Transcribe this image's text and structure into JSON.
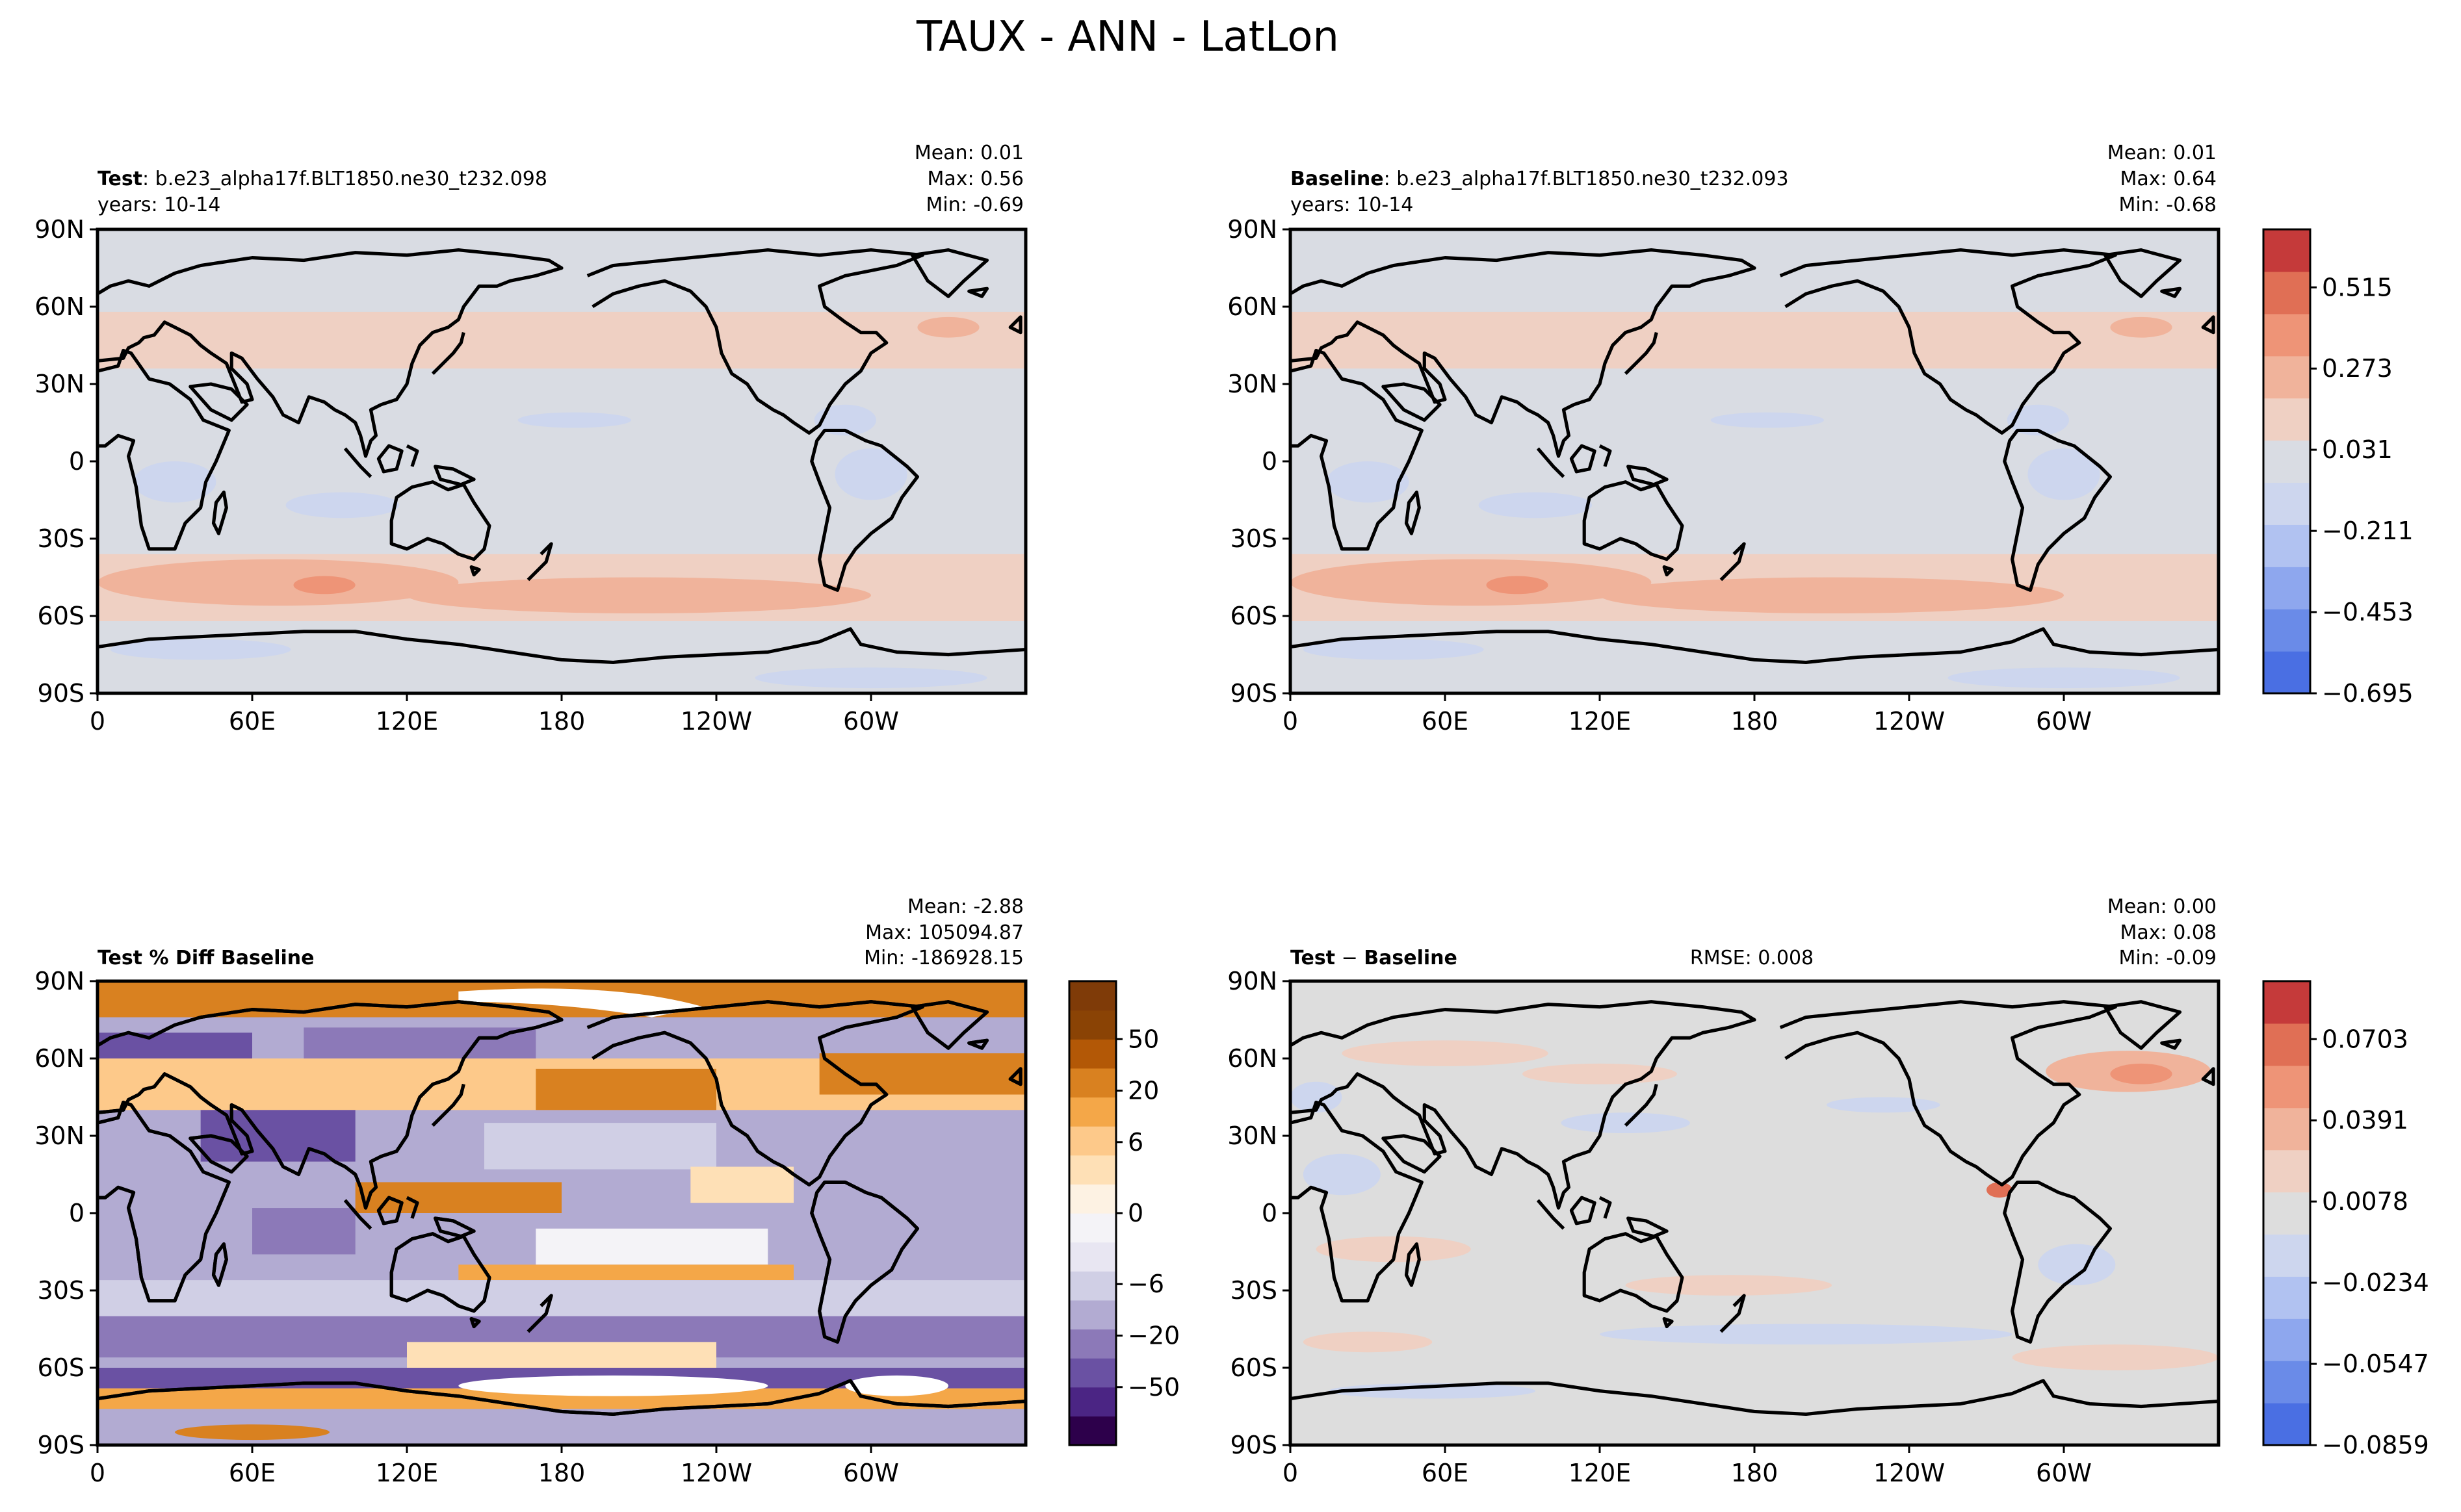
{
  "figure": {
    "title": "TAUX - ANN - LatLon"
  },
  "axes_ticks": {
    "lat": [
      "90N",
      "60N",
      "30N",
      "0",
      "30S",
      "60S",
      "90S"
    ],
    "lon": [
      "0",
      "60E",
      "120E",
      "180",
      "120W",
      "60W"
    ]
  },
  "panels": {
    "test": {
      "label_bold": "Test",
      "label_rest": ": b.e23_alpha17f.BLT1850.ne30_t232.098",
      "years": "years: 10-14",
      "stats": [
        "Mean:  0.01",
        "Max:  0.56",
        "Min: -0.69"
      ]
    },
    "baseline": {
      "label_bold": "Baseline",
      "label_rest": ": b.e23_alpha17f.BLT1850.ne30_t232.093",
      "years": "years: 10-14",
      "stats": [
        "Mean:  0.01",
        "Max:  0.64",
        "Min: -0.68"
      ]
    },
    "pctdiff": {
      "label_bold": "Test % Diff Baseline",
      "stats": [
        "Mean: -2.88",
        "Max: 105094.87",
        "Min: -186928.15"
      ]
    },
    "diff": {
      "label_bold_1": "Test",
      "label_mid": " − ",
      "label_bold_2": "Baseline",
      "rmse": "RMSE: 0.008",
      "stats": [
        "Mean:  0.00",
        "Max:  0.08",
        "Min: -0.09"
      ]
    }
  },
  "colorbars": {
    "main": {
      "ticks": [
        "0.515",
        "0.273",
        "0.031",
        "−0.211",
        "−0.453",
        "−0.695"
      ],
      "colors": [
        "#4a6fe3",
        "#6a8be8",
        "#8ea7ee",
        "#b1c2f1",
        "#cdd6ee",
        "#d9dce3",
        "#efd0c3",
        "#f0b39b",
        "#ee9477",
        "#e06f55",
        "#c53a3a"
      ]
    },
    "pct": {
      "ticks": [
        "50",
        "20",
        "6",
        "0",
        "−6",
        "−20",
        "−50"
      ],
      "colors": [
        "#2d004b",
        "#4b2584",
        "#6a51a3",
        "#8c79b8",
        "#b2abd2",
        "#d0cfe5",
        "#e8e6f2",
        "#f4f3f7",
        "#fdf2e3",
        "#fee0b6",
        "#fdc98a",
        "#f4a748",
        "#d98120",
        "#b35806",
        "#8a4305",
        "#7f3b08"
      ]
    },
    "diff": {
      "ticks": [
        "0.0703",
        "0.0391",
        "0.0078",
        "−0.0234",
        "−0.0547",
        "−0.0859"
      ],
      "colors": [
        "#4a6fe3",
        "#6a8be8",
        "#8ea7ee",
        "#b1c2f1",
        "#cdd6ee",
        "#dddddd",
        "#efd0c3",
        "#f0b39b",
        "#ee9477",
        "#e06f55",
        "#c53a3a"
      ]
    }
  }
}
